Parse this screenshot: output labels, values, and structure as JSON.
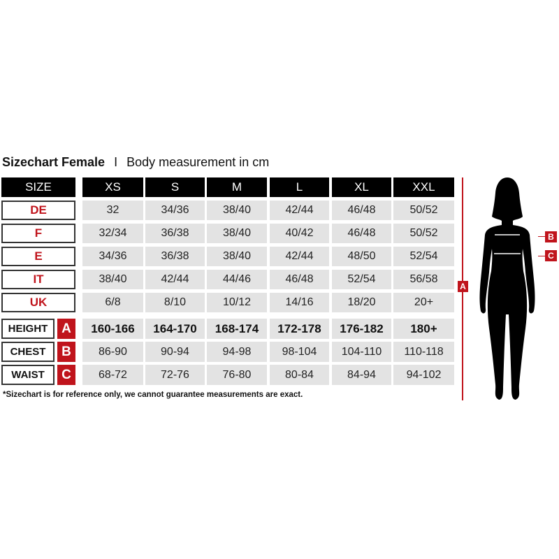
{
  "title": {
    "bold": "Sizechart Female",
    "separator": "I",
    "subtitle": "Body measurement in cm"
  },
  "header": {
    "label": "SIZE",
    "sizes": [
      "XS",
      "S",
      "M",
      "L",
      "XL",
      "XXL"
    ]
  },
  "size_rows": [
    {
      "label": "DE",
      "values": [
        "32",
        "34/36",
        "38/40",
        "42/44",
        "46/48",
        "50/52"
      ]
    },
    {
      "label": "F",
      "values": [
        "32/34",
        "36/38",
        "38/40",
        "40/42",
        "46/48",
        "50/52"
      ]
    },
    {
      "label": "E",
      "values": [
        "34/36",
        "36/38",
        "38/40",
        "42/44",
        "48/50",
        "52/54"
      ]
    },
    {
      "label": "IT",
      "values": [
        "38/40",
        "42/44",
        "44/46",
        "46/48",
        "52/54",
        "56/58"
      ]
    },
    {
      "label": "UK",
      "values": [
        "6/8",
        "8/10",
        "10/12",
        "14/16",
        "18/20",
        "20+"
      ]
    }
  ],
  "measure_rows": [
    {
      "label": "HEIGHT",
      "letter": "A",
      "values": [
        "160-166",
        "164-170",
        "168-174",
        "172-178",
        "176-182",
        "180+"
      ]
    },
    {
      "label": "CHEST",
      "letter": "B",
      "values": [
        "86-90",
        "90-94",
        "94-98",
        "98-104",
        "104-110",
        "110-118"
      ]
    },
    {
      "label": "WAIST",
      "letter": "C",
      "values": [
        "68-72",
        "72-76",
        "76-80",
        "80-84",
        "84-94",
        "94-102"
      ]
    }
  ],
  "footnote": "*Sizechart is for reference only, we cannot guarantee measurements are exact.",
  "figure": {
    "height_tag": "A",
    "chest_tag": "B",
    "waist_tag": "C"
  },
  "colors": {
    "accent": "#c0141c",
    "header_bg": "#000000",
    "cell_bg": "#e3e3e3"
  }
}
